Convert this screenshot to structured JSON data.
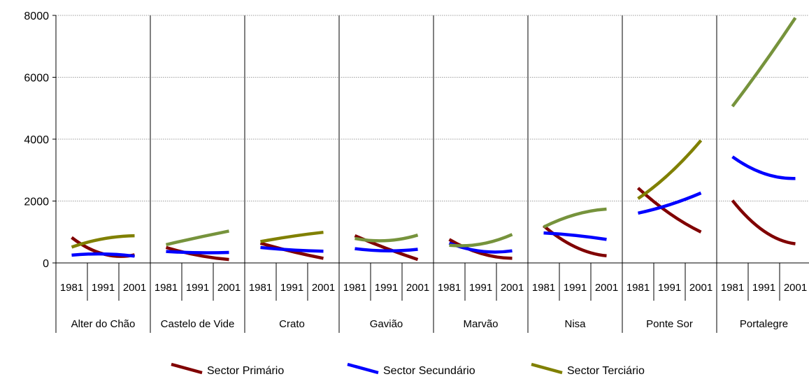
{
  "chart_data": {
    "type": "line",
    "title": "",
    "xlabel": "",
    "ylabel": "",
    "ylim": [
      0,
      8000
    ],
    "yticks": [
      "0",
      "2000",
      "4000",
      "6000",
      "8000"
    ],
    "grid": true,
    "legend_position": "bottom",
    "years": [
      "1981",
      "1991",
      "2001"
    ],
    "groups": [
      "Alter do Chão",
      "Castelo de Vide",
      "Crato",
      "Gavião",
      "Marvão",
      "Nisa",
      "Ponte Sor",
      "Portalegre"
    ],
    "series": [
      {
        "name": "Sector Primário",
        "color": "#800000",
        "values": [
          [
            820,
            290,
            260
          ],
          [
            500,
            250,
            110
          ],
          [
            640,
            370,
            150
          ],
          [
            880,
            470,
            110
          ],
          [
            760,
            310,
            150
          ],
          [
            1200,
            520,
            230
          ],
          [
            2420,
            1600,
            1000
          ],
          [
            2020,
            1030,
            620
          ]
        ]
      },
      {
        "name": "Sector Secundário",
        "color": "#0000ff",
        "values": [
          [
            250,
            290,
            220
          ],
          [
            370,
            330,
            340
          ],
          [
            500,
            420,
            380
          ],
          [
            460,
            390,
            440
          ],
          [
            640,
            380,
            390
          ],
          [
            970,
            890,
            760
          ],
          [
            1610,
            1880,
            2260
          ],
          [
            3430,
            2890,
            2730
          ]
        ]
      },
      {
        "name": "Sector  Terciário",
        "color": "#808000",
        "values": [
          [
            510,
            780,
            880
          ],
          [
            590,
            820,
            1030
          ],
          [
            690,
            860,
            990
          ],
          [
            790,
            720,
            900
          ],
          [
            570,
            610,
            920
          ],
          [
            1160,
            1560,
            1740
          ],
          [
            2080,
            2890,
            3960
          ],
          [
            5060,
            6440,
            7920
          ]
        ]
      }
    ]
  }
}
